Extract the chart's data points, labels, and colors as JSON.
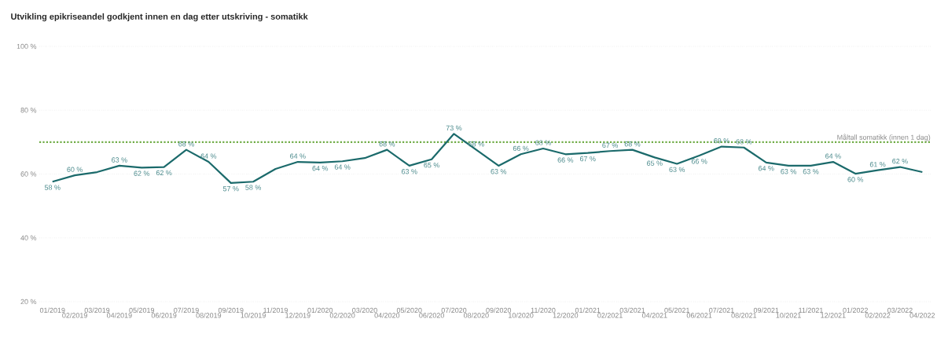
{
  "chart_data": {
    "type": "line",
    "title": "Utvikling epikriseandel godkjent innen en dag etter utskriving - somatikk",
    "categories": [
      "01/2019",
      "02/2019",
      "03/2019",
      "04/2019",
      "05/2019",
      "06/2019",
      "07/2019",
      "08/2019",
      "09/2019",
      "10/2019",
      "11/2019",
      "12/2019",
      "01/2020",
      "02/2020",
      "03/2020",
      "04/2020",
      "05/2020",
      "06/2020",
      "07/2020",
      "08/2020",
      "09/2020",
      "10/2020",
      "11/2020",
      "12/2020",
      "01/2021",
      "02/2021",
      "03/2021",
      "04/2021",
      "05/2021",
      "06/2021",
      "07/2021",
      "08/2021",
      "09/2021",
      "10/2021",
      "11/2021",
      "12/2021",
      "01/2022",
      "02/2022",
      "03/2022",
      "04/2022"
    ],
    "series": [
      {
        "color": "#1b6a6b",
        "values": [
          57.6,
          59.6,
          60.6,
          62.6,
          62.0,
          62.2,
          67.6,
          63.8,
          57.2,
          57.6,
          61.6,
          63.8,
          63.6,
          64.0,
          65.0,
          67.6,
          62.6,
          64.6,
          72.6,
          67.6,
          62.6,
          66.2,
          68.0,
          66.2,
          66.6,
          67.2,
          67.6,
          65.2,
          63.2,
          65.8,
          68.6,
          68.3,
          63.6,
          62.6,
          62.6,
          63.8,
          60.1,
          61.2,
          62.2,
          60.6
        ],
        "value_labels": [
          "58 %",
          "60 %",
          null,
          "63 %",
          "62 %",
          "62 %",
          "68 %",
          "64 %",
          "57 %",
          "58 %",
          null,
          "64 %",
          "64 %",
          "64 %",
          null,
          "68 %",
          "63 %",
          "65 %",
          "73 %",
          "68 %",
          "63 %",
          "66 %",
          "68 %",
          "66 %",
          "67 %",
          "67 %",
          "68 %",
          "65 %",
          "63 %",
          "66 %",
          "69 %",
          "68 %",
          "64 %",
          "63 %",
          "63 %",
          "64 %",
          "60 %",
          "61 %",
          "62 %",
          null
        ]
      }
    ],
    "ylim": [
      20,
      100
    ],
    "yticks": [
      {
        "value": 20,
        "label": "20 %"
      },
      {
        "value": 40,
        "label": "40 %"
      },
      {
        "value": 60,
        "label": "60 %"
      },
      {
        "value": 80,
        "label": "80 %"
      },
      {
        "value": 100,
        "label": "100 %"
      }
    ],
    "grid": "y",
    "ref_lines": [
      {
        "axis": "y",
        "value": 70,
        "label": "Måltall somatikk (innen 1 dag)",
        "color": "#70ad47",
        "line_style": "dotted"
      }
    ]
  }
}
